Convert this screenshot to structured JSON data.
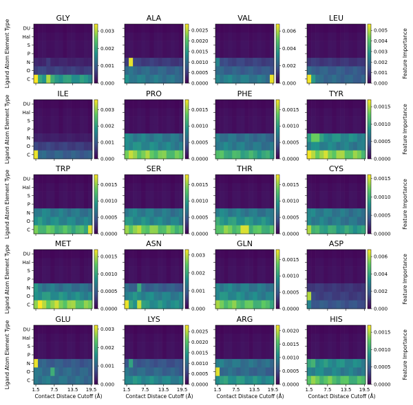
{
  "figure": {
    "ylabel": "Ligand Atom Element Type",
    "xlabel": "Contact Distace Cutoff (Å)",
    "colorbar_label": "Feature Importance",
    "colormap": "viridis",
    "colormap_stops": [
      "#440154",
      "#3b528b",
      "#21918c",
      "#5ec962",
      "#fde725"
    ],
    "row_labels": [
      "DU",
      "Hal",
      "S",
      "P",
      "N",
      "O",
      "C"
    ],
    "x_ticks": [
      "1.5",
      "7.5",
      "13.5",
      "19.5"
    ]
  },
  "chart_data": [
    {
      "type": "heatmap",
      "title": "GLY",
      "clim": [
        0,
        0.0034
      ],
      "cbar_ticks": [
        "0.003",
        "0.002",
        "0.001",
        "0.000"
      ],
      "cbar_values": [
        0.003,
        0.002,
        0.001,
        0
      ],
      "profile": {
        "N": 0.0004,
        "O": 0.0007,
        "C": 0.002
      },
      "peaks": {
        "C": [
          [
            0,
            0.0034
          ],
          [
            3,
            0.003
          ]
        ],
        "N": [
          [
            3,
            0.0006
          ]
        ]
      }
    },
    {
      "type": "heatmap",
      "title": "ALA",
      "clim": [
        0,
        0.0028
      ],
      "cbar_ticks": [
        "0.0025",
        "0.0020",
        "0.0015",
        "0.0010",
        "0.0005",
        "0.0000"
      ],
      "cbar_values": [
        0.0025,
        0.002,
        0.0015,
        0.001,
        0.0005,
        0
      ],
      "profile": {
        "N": 0.00055,
        "O": 0.001,
        "C": 0.0012
      },
      "peaks": {
        "N": [
          [
            1,
            0.0027
          ]
        ],
        "C": [
          [
            0,
            0.0014
          ]
        ]
      }
    },
    {
      "type": "heatmap",
      "title": "VAL",
      "clim": [
        0,
        0.0068
      ],
      "cbar_ticks": [
        "0.006",
        "0.004",
        "0.002",
        "0.000"
      ],
      "cbar_values": [
        0.006,
        0.004,
        0.002,
        0
      ],
      "profile": {
        "N": 0.0015,
        "O": 0.0022,
        "C": 0.003
      },
      "peaks": {
        "C": [
          [
            13,
            0.0066
          ]
        ],
        "N": [
          [
            0,
            0.003
          ]
        ]
      }
    },
    {
      "type": "heatmap",
      "title": "LEU",
      "clim": [
        0,
        0.0056
      ],
      "cbar_ticks": [
        "0.005",
        "0.004",
        "0.003",
        "0.002",
        "0.001",
        "0.000"
      ],
      "cbar_values": [
        0.005,
        0.004,
        0.003,
        0.002,
        0.001,
        0
      ],
      "profile": {
        "N": 0.001,
        "O": 0.0018,
        "C": 0.002
      },
      "peaks": {
        "C": [
          [
            0,
            0.0055
          ],
          [
            1,
            0.003
          ]
        ]
      }
    },
    {
      "type": "heatmap",
      "title": "ILE",
      "clim": [
        0,
        0.0036
      ],
      "cbar_ticks": [
        "0.003",
        "0.002",
        "0.001",
        "0.000"
      ],
      "cbar_values": [
        0.003,
        0.002,
        0.001,
        0
      ],
      "profile": {
        "N": 0.00035,
        "O": 0.00075,
        "C": 0.0012
      },
      "peaks": {
        "C": [
          [
            0,
            0.0035
          ]
        ]
      }
    },
    {
      "type": "heatmap",
      "title": "PRO",
      "clim": [
        0,
        0.0018
      ],
      "cbar_ticks": [
        "0.0015",
        "0.0010",
        "0.0005",
        "0.0000"
      ],
      "cbar_values": [
        0.0015,
        0.001,
        0.0005,
        0
      ],
      "profile": {
        "N": 0.0008,
        "O": 0.0009,
        "C": 0.0015
      },
      "peaks": {}
    },
    {
      "type": "heatmap",
      "title": "PHE",
      "clim": [
        0,
        0.0018
      ],
      "cbar_ticks": [
        "0.0015",
        "0.0010",
        "0.0005",
        "0.0000"
      ],
      "cbar_values": [
        0.0015,
        0.001,
        0.0005,
        0
      ],
      "profile": {
        "N": 0.0007,
        "O": 0.0008,
        "C": 0.0012
      },
      "peaks": {}
    },
    {
      "type": "heatmap",
      "title": "TYR",
      "clim": [
        0,
        0.0017
      ],
      "cbar_ticks": [
        "0.0015",
        "0.0010",
        "0.0005",
        "0.0000"
      ],
      "cbar_values": [
        0.0015,
        0.001,
        0.0005,
        0
      ],
      "profile": {
        "N": 0.0009,
        "O": 0.0008,
        "C": 0.0015
      },
      "peaks": {
        "N": [
          [
            1,
            0.0013
          ],
          [
            2,
            0.0013
          ]
        ]
      }
    },
    {
      "type": "heatmap",
      "title": "TRP",
      "clim": [
        0,
        0.0018
      ],
      "cbar_ticks": [
        "0.0015",
        "0.0010",
        "0.0005",
        "0.0000"
      ],
      "cbar_values": [
        0.0015,
        0.001,
        0.0005,
        0
      ],
      "profile": {
        "N": 0.0008,
        "O": 0.0009,
        "C": 0.0013
      },
      "peaks": {
        "C": [
          [
            13,
            0.0017
          ]
        ]
      }
    },
    {
      "type": "heatmap",
      "title": "SER",
      "clim": [
        0,
        0.0018
      ],
      "cbar_ticks": [
        "0.0015",
        "0.0010",
        "0.0005",
        "0.0000"
      ],
      "cbar_values": [
        0.0015,
        0.001,
        0.0005,
        0
      ],
      "profile": {
        "N": 0.0008,
        "O": 0.0009,
        "C": 0.0015
      },
      "peaks": {}
    },
    {
      "type": "heatmap",
      "title": "THR",
      "clim": [
        0,
        0.0018
      ],
      "cbar_ticks": [
        "0.0015",
        "0.0010",
        "0.0005",
        "0.0000"
      ],
      "cbar_values": [
        0.0015,
        0.001,
        0.0005,
        0
      ],
      "profile": {
        "N": 0.0008,
        "O": 0.001,
        "C": 0.0014
      },
      "peaks": {
        "C": [
          [
            6,
            0.0017
          ],
          [
            7,
            0.0017
          ]
        ]
      }
    },
    {
      "type": "heatmap",
      "title": "CYS",
      "clim": [
        0,
        0.0016
      ],
      "cbar_ticks": [
        "0.0015",
        "0.0010",
        "0.0005",
        "0.0000"
      ],
      "cbar_values": [
        0.0015,
        0.001,
        0.0005,
        0
      ],
      "profile": {
        "N": 0.0007,
        "O": 0.0007,
        "C": 0.001
      },
      "peaks": {
        "C": [
          [
            0,
            0.0014
          ]
        ]
      }
    },
    {
      "type": "heatmap",
      "title": "MET",
      "clim": [
        0,
        0.0017
      ],
      "cbar_ticks": [
        "0.0015",
        "0.0010",
        "0.0005",
        "0.0000"
      ],
      "cbar_values": [
        0.0015,
        0.001,
        0.0005,
        0
      ],
      "profile": {
        "N": 0.0007,
        "O": 0.0009,
        "C": 0.0015
      },
      "peaks": {
        "C": [
          [
            1,
            0.0017
          ]
        ],
        "N": [
          [
            0,
            0.0009
          ]
        ]
      }
    },
    {
      "type": "heatmap",
      "title": "ASN",
      "clim": [
        0,
        0.0033
      ],
      "cbar_ticks": [
        "0.003",
        "0.002",
        "0.001",
        "0.000"
      ],
      "cbar_values": [
        0.003,
        0.002,
        0.001,
        0
      ],
      "profile": {
        "N": 0.0011,
        "O": 0.0016,
        "C": 0.0018
      },
      "peaks": {
        "C": [
          [
            0,
            0.0032
          ],
          [
            3,
            0.003
          ]
        ],
        "N": [
          [
            3,
            0.002
          ]
        ]
      }
    },
    {
      "type": "heatmap",
      "title": "GLN",
      "clim": [
        0,
        0.0018
      ],
      "cbar_ticks": [
        "0.0015",
        "0.0010",
        "0.0005",
        "0.0000"
      ],
      "cbar_values": [
        0.0015,
        0.001,
        0.0005,
        0
      ],
      "profile": {
        "N": 0.0008,
        "O": 0.0009,
        "C": 0.0014
      },
      "peaks": {}
    },
    {
      "type": "heatmap",
      "title": "ASP",
      "clim": [
        0,
        0.0068
      ],
      "cbar_ticks": [
        "0.006",
        "0.004",
        "0.002",
        "0.000"
      ],
      "cbar_values": [
        0.006,
        0.004,
        0.002,
        0
      ],
      "profile": {
        "N": 0.0012,
        "O": 0.0014,
        "C": 0.002
      },
      "peaks": {
        "O": [
          [
            0,
            0.006
          ]
        ],
        "C": [
          [
            0,
            0.003
          ]
        ]
      }
    },
    {
      "type": "heatmap",
      "title": "GLU",
      "clim": [
        0,
        0.0032
      ],
      "cbar_ticks": [
        "0.003",
        "0.002",
        "0.001",
        "0.000"
      ],
      "cbar_values": [
        0.003,
        0.002,
        0.001,
        0
      ],
      "profile": {
        "N": 0.001,
        "O": 0.0012,
        "C": 0.0013
      },
      "peaks": {
        "N": [
          [
            0,
            0.0031
          ]
        ],
        "O": [
          [
            4,
            0.002
          ]
        ]
      }
    },
    {
      "type": "heatmap",
      "title": "LYS",
      "clim": [
        0,
        0.0028
      ],
      "cbar_ticks": [
        "0.0025",
        "0.0020",
        "0.0015",
        "0.0010",
        "0.0005",
        "0.0000"
      ],
      "cbar_values": [
        0.0025,
        0.002,
        0.0015,
        0.001,
        0.0005,
        0
      ],
      "profile": {
        "N": 0.0008,
        "O": 0.001,
        "C": 0.0014
      },
      "peaks": {
        "N": [
          [
            1,
            0.0016
          ]
        ]
      }
    },
    {
      "type": "heatmap",
      "title": "ARG",
      "clim": [
        0,
        0.0022
      ],
      "cbar_ticks": [
        "0.0020",
        "0.0015",
        "0.0010",
        "0.0005",
        "0.0000"
      ],
      "cbar_values": [
        0.002,
        0.0015,
        0.001,
        0.0005,
        0
      ],
      "profile": {
        "N": 0.0009,
        "O": 0.0008,
        "C": 0.0012
      },
      "peaks": {
        "O": [
          [
            0,
            0.0021
          ]
        ]
      }
    },
    {
      "type": "heatmap",
      "title": "HIS",
      "clim": [
        0,
        0.0017
      ],
      "cbar_ticks": [
        "0.0015",
        "0.0010",
        "0.0005",
        "0.0000"
      ],
      "cbar_values": [
        0.0015,
        0.001,
        0.0005,
        0
      ],
      "profile": {
        "N": 0.0009,
        "O": 0.0008,
        "C": 0.0013
      },
      "peaks": {
        "N": [
          [
            1,
            0.0011
          ]
        ]
      }
    }
  ]
}
